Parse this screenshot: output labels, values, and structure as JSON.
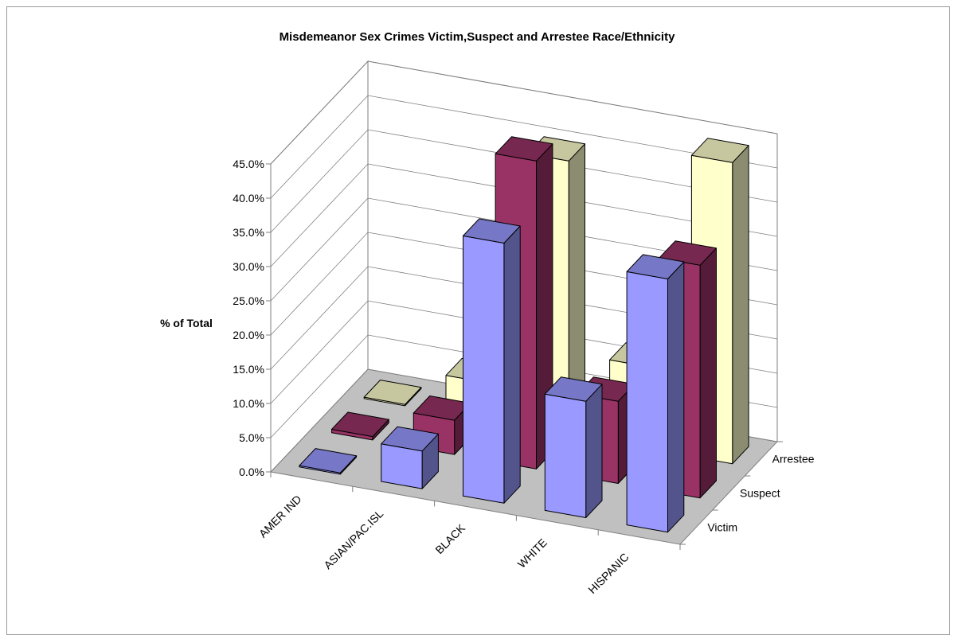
{
  "chart_data": {
    "type": "bar",
    "subtype": "3d-column",
    "title": "Misdemeanor Sex Crimes Victim,Suspect and Arrestee Race/Ethnicity",
    "xlabel": "",
    "ylabel": "% of Total",
    "ylim": [
      0,
      45
    ],
    "yticks": [
      "0.0%",
      "5.0%",
      "10.0%",
      "15.0%",
      "20.0%",
      "25.0%",
      "30.0%",
      "35.0%",
      "40.0%",
      "45.0%"
    ],
    "categories": [
      "AMER IND",
      "ASIAN/PAC.ISL",
      "BLACK",
      "WHITE",
      "HISPANIC"
    ],
    "series": [
      {
        "name": "Victim",
        "values": [
          0.2,
          5.5,
          38.0,
          17.0,
          37.0
        ],
        "color": "#9999ff"
      },
      {
        "name": "Suspect",
        "values": [
          0.5,
          5.0,
          45.0,
          12.0,
          34.0
        ],
        "color": "#993366"
      },
      {
        "name": "Arrestee",
        "values": [
          0.2,
          5.5,
          40.0,
          12.0,
          44.0
        ],
        "color": "#ffffcc"
      }
    ],
    "floor_color": "#c0c0c0",
    "gridlines": true,
    "legend": "depth-axis"
  }
}
